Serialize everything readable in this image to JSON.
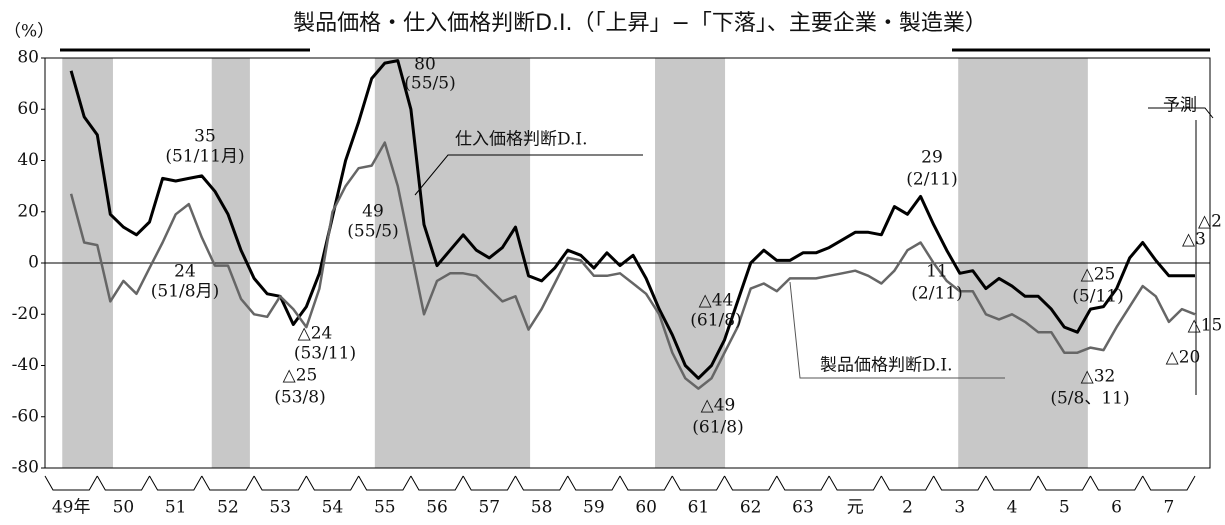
{
  "chart_data": {
    "type": "line",
    "title": "製品価格・仕入価格判断D.I.（「上昇」−「下落」、主要企業・製造業）",
    "y_label": "（%）",
    "categories": [
      "49年",
      "50",
      "51",
      "52",
      "53",
      "54",
      "55",
      "56",
      "57",
      "58",
      "59",
      "60",
      "61",
      "62",
      "63",
      "元",
      "2",
      "3",
      "4",
      "5",
      "6",
      "7"
    ],
    "series": [
      {
        "name": "仕入価格判断D.I.",
        "color": "#000000",
        "values": [
          [
            null,
            75,
            57,
            50
          ],
          [
            19,
            14,
            11,
            16
          ],
          [
            33,
            32,
            33,
            34
          ],
          [
            28,
            19,
            5,
            -6
          ],
          [
            -12,
            -13,
            -24,
            -17
          ],
          [
            -4,
            18,
            40,
            55
          ],
          [
            72,
            78,
            79,
            60
          ],
          [
            15,
            -1,
            5,
            11
          ],
          [
            5,
            2,
            6,
            14
          ],
          [
            -5,
            -7,
            -2,
            5
          ],
          [
            3,
            -2,
            4,
            -1
          ],
          [
            3,
            -6,
            -18,
            -28
          ],
          [
            -40,
            -45,
            -40,
            -30
          ],
          [
            -15,
            0,
            5,
            1
          ],
          [
            1,
            4,
            4,
            6
          ],
          [
            9,
            12,
            12,
            11
          ],
          [
            22,
            19,
            26,
            15
          ],
          [
            5,
            -4,
            -3,
            -10
          ],
          [
            -6,
            -9,
            -13,
            -13
          ],
          [
            -18,
            -25,
            -27,
            -18
          ],
          [
            -17,
            -10,
            2,
            8
          ],
          [
            1,
            -5,
            -5,
            -5
          ]
        ]
      },
      {
        "name": "製品価格判断D.I.",
        "color": "#666666",
        "values": [
          [
            null,
            27,
            8,
            7
          ],
          [
            -15,
            -7,
            -12,
            -2
          ],
          [
            8,
            19,
            23,
            10
          ],
          [
            -1,
            -1,
            -14,
            -20
          ],
          [
            -21,
            -13,
            -18,
            -25
          ],
          [
            -10,
            20,
            30,
            37
          ],
          [
            38,
            47,
            30,
            5
          ],
          [
            -20,
            -7,
            -4,
            -4
          ],
          [
            -5,
            -10,
            -15,
            -13
          ],
          [
            -26,
            -18,
            -8,
            2
          ],
          [
            1,
            -5,
            -5,
            -4
          ],
          [
            -8,
            -12,
            -20,
            -35
          ],
          [
            -45,
            -49,
            -45,
            -35
          ],
          [
            -25,
            -10,
            -8,
            -11
          ],
          [
            -6,
            -6,
            -6,
            -5
          ],
          [
            -4,
            -3,
            -5,
            -8
          ],
          [
            -3,
            5,
            8,
            0
          ],
          [
            -7,
            -11,
            -11,
            -20
          ],
          [
            -22,
            -20,
            -23,
            -27
          ],
          [
            -27,
            -35,
            -35,
            -33
          ],
          [
            -34,
            -25,
            -17,
            -9
          ],
          [
            -13,
            -23,
            -18,
            -20
          ]
        ]
      }
    ],
    "shaded_periods": [
      [
        0.33,
        1.3
      ],
      [
        3.19,
        3.92
      ],
      [
        6.31,
        9.28
      ],
      [
        11.67,
        13.01
      ],
      [
        17.47,
        19.95
      ]
    ],
    "annotations": [
      "35",
      "(51/11月)",
      "24",
      "(51/8月)",
      "△24",
      "(53/11)",
      "△25",
      "(53/8)",
      "80",
      "(55/5)",
      "49",
      "(55/5)",
      "29",
      "(2/11)",
      "11",
      "(2/11)",
      "△44",
      "(61/8)",
      "△49",
      "(61/8)",
      "△25",
      "(5/11)",
      "△32",
      "(5/8、11)",
      "△2",
      "△3",
      "△15",
      "△20",
      "予測"
    ],
    "ylim": [
      -80,
      80
    ],
    "yticks": [
      80,
      60,
      40,
      20,
      0,
      -20,
      -40,
      -60,
      -80
    ]
  }
}
